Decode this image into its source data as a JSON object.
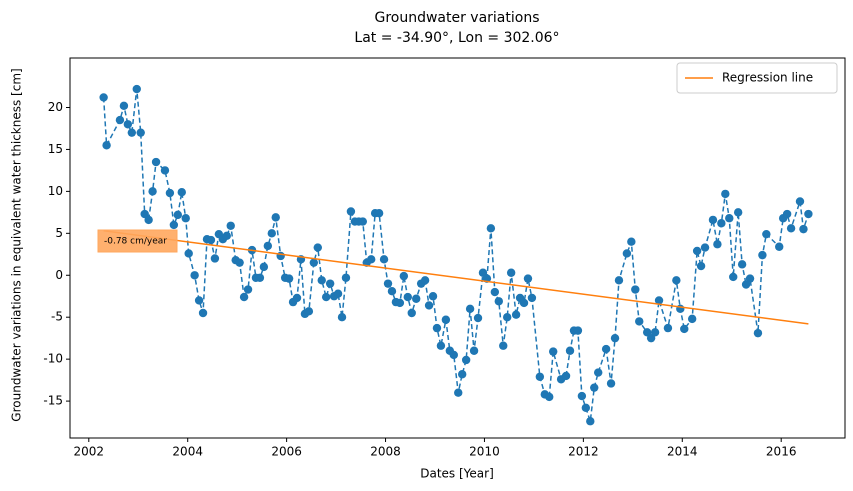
{
  "chart_data": {
    "type": "line",
    "title": "Groundwater variations",
    "subtitle": "Lat = -34.90°, Lon = 302.06°",
    "xlabel": "Dates [Year]",
    "ylabel": "Groundwater variations in equivalent water thickness [cm]",
    "annotation": "-0.78 cm/year",
    "annotation_color": "#ffa75e",
    "xlim": [
      2001.62,
      2017.29
    ],
    "ylim": [
      -19.4,
      25.9
    ],
    "xticks": [
      2002,
      2004,
      2006,
      2008,
      2010,
      2012,
      2014,
      2016
    ],
    "yticks": [
      -15,
      -10,
      -5,
      0,
      5,
      10,
      15,
      20
    ],
    "grid": false,
    "legend": "upper right",
    "series": [
      {
        "color": "#1f77b4",
        "x": [
          2002.3,
          2002.36,
          2002.63,
          2002.71,
          2002.79,
          2002.87,
          2002.97,
          2003.05,
          2003.13,
          2003.21,
          2003.29,
          2003.36,
          2003.54,
          2003.64,
          2003.72,
          2003.8,
          2003.88,
          2003.96,
          2004.02,
          2004.14,
          2004.23,
          2004.31,
          2004.39,
          2004.47,
          2004.55,
          2004.63,
          2004.71,
          2004.79,
          2004.87,
          2004.97,
          2005.05,
          2005.14,
          2005.22,
          2005.3,
          2005.38,
          2005.46,
          2005.54,
          2005.62,
          2005.7,
          2005.78,
          2005.88,
          2005.97,
          2006.05,
          2006.13,
          2006.21,
          2006.29,
          2006.37,
          2006.45,
          2006.55,
          2006.63,
          2006.71,
          2006.8,
          2006.88,
          2006.96,
          2007.04,
          2007.12,
          2007.2,
          2007.3,
          2007.38,
          2007.46,
          2007.54,
          2007.62,
          2007.71,
          2007.79,
          2007.87,
          2007.97,
          2008.05,
          2008.13,
          2008.21,
          2008.29,
          2008.37,
          2008.45,
          2008.53,
          2008.62,
          2008.72,
          2008.8,
          2008.88,
          2008.96,
          2009.04,
          2009.12,
          2009.22,
          2009.3,
          2009.38,
          2009.47,
          2009.55,
          2009.63,
          2009.71,
          2009.79,
          2009.87,
          2009.97,
          2010.05,
          2010.13,
          2010.21,
          2010.29,
          2010.38,
          2010.46,
          2010.54,
          2010.64,
          2010.72,
          2010.8,
          2010.88,
          2010.96,
          2011.12,
          2011.22,
          2011.31,
          2011.39,
          2011.55,
          2011.65,
          2011.73,
          2011.81,
          2011.89,
          2011.97,
          2012.05,
          2012.14,
          2012.22,
          2012.3,
          2012.46,
          2012.56,
          2012.64,
          2012.72,
          2012.88,
          2012.97,
          2013.05,
          2013.13,
          2013.29,
          2013.37,
          2013.45,
          2013.53,
          2013.71,
          2013.88,
          2013.96,
          2014.04,
          2014.2,
          2014.3,
          2014.38,
          2014.46,
          2014.62,
          2014.71,
          2014.79,
          2014.87,
          2014.95,
          2015.03,
          2015.13,
          2015.21,
          2015.29,
          2015.37,
          2015.53,
          2015.62,
          2015.7,
          2015.96,
          2016.04,
          2016.12,
          2016.2,
          2016.38,
          2016.45,
          2016.55
        ],
        "values": [
          21.2,
          15.5,
          18.5,
          20.2,
          18,
          17,
          22.2,
          17,
          7.3,
          6.6,
          10,
          13.5,
          12.5,
          9.8,
          6,
          7.2,
          9.9,
          6.8,
          2.6,
          0,
          -3,
          -4.5,
          4.3,
          4.2,
          2,
          4.9,
          4.3,
          4.7,
          5.9,
          1.8,
          1.5,
          -2.6,
          -1.7,
          3,
          -0.3,
          -0.3,
          1,
          3.5,
          5,
          6.9,
          2.3,
          -0.3,
          -0.4,
          -3.2,
          -2.7,
          1.9,
          -4.6,
          -4.3,
          1.5,
          3.3,
          -0.6,
          -2.6,
          -1,
          -2.5,
          -2.2,
          -5,
          -0.3,
          7.6,
          6.4,
          6.4,
          6.4,
          1.5,
          1.9,
          7.4,
          7.4,
          1.9,
          -1,
          -1.9,
          -3.2,
          -3.3,
          -0.1,
          -2.6,
          -4.5,
          -2.8,
          -1,
          -0.6,
          -3.6,
          -2.5,
          -6.3,
          -8.4,
          -5.3,
          -9,
          -9.5,
          -14,
          -11.8,
          -10.1,
          -4,
          -9,
          -5.1,
          0.3,
          -0.4,
          5.6,
          -2,
          -3.1,
          -8.4,
          -5,
          0.3,
          -4.7,
          -2.7,
          -3.3,
          -0.4,
          -2.7,
          -12.1,
          -14.2,
          -14.5,
          -9.1,
          -12.4,
          -12,
          -9,
          -6.6,
          -6.6,
          -14.4,
          -15.8,
          -17.4,
          -13.4,
          -11.6,
          -8.8,
          -12.9,
          -7.5,
          -0.6,
          2.6,
          4,
          -1.7,
          -5.5,
          -6.8,
          -7.5,
          -6.8,
          -3,
          -6.3,
          -0.6,
          -4,
          -6.4,
          -5.2,
          2.9,
          1.1,
          3.3,
          6.6,
          3.7,
          6.2,
          9.7,
          6.8,
          -0.2,
          7.5,
          1.3,
          -1.1,
          -0.4,
          -6.9,
          2.4,
          4.9,
          3.4,
          6.8,
          7.3,
          5.6,
          8.8,
          5.5,
          7.3
        ]
      },
      {
        "name": "Regression line",
        "color": "#ff7f0e",
        "x": [
          2002.3,
          2016.55
        ],
        "values": [
          5.3,
          -5.8
        ]
      }
    ]
  }
}
